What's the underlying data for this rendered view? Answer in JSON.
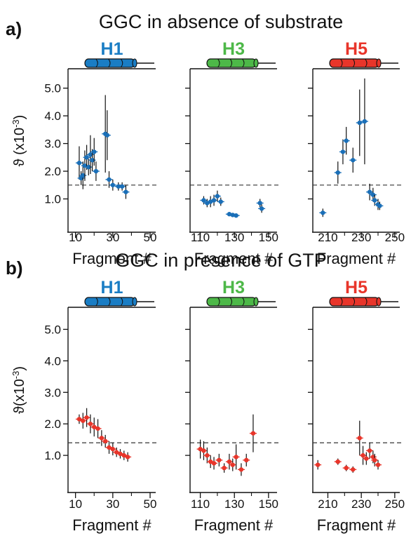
{
  "chart_data": [
    {
      "type": "scatter",
      "panel": "a)",
      "title": "GGC in absence of substrate",
      "ylabel_main": "ϑ (x10",
      "ylabel_exp": "-3",
      "ylabel_close": ")",
      "threshold": 1.5,
      "ylim": [
        0,
        5.7
      ],
      "yticks": [
        1.0,
        2.0,
        3.0,
        4.0,
        5.0
      ],
      "subplots": [
        {
          "helix": "H1",
          "helix_color": "#1a7dc4",
          "xlabel": "Fragment #",
          "xlim": [
            6,
            53
          ],
          "xticks": [
            10,
            30,
            50
          ],
          "xminor": [
            20,
            40
          ],
          "marker_color": "#1a6fb8",
          "points": [
            {
              "x": 12,
              "y": 2.3,
              "err": 0.6
            },
            {
              "x": 13,
              "y": 1.75,
              "err": 0.25
            },
            {
              "x": 14,
              "y": 1.85,
              "err": 0.5
            },
            {
              "x": 15,
              "y": 2.2,
              "err": 0.55
            },
            {
              "x": 16,
              "y": 2.5,
              "err": 0.45
            },
            {
              "x": 17,
              "y": 2.15,
              "err": 0.3
            },
            {
              "x": 18,
              "y": 2.6,
              "err": 0.7
            },
            {
              "x": 19,
              "y": 2.4,
              "err": 0.4
            },
            {
              "x": 20,
              "y": 2.7,
              "err": 0.5
            },
            {
              "x": 21,
              "y": 2.0,
              "err": 0.35
            },
            {
              "x": 26,
              "y": 3.35,
              "err": 1.4
            },
            {
              "x": 27,
              "y": 3.3,
              "err": 0.9
            },
            {
              "x": 28,
              "y": 1.7,
              "err": 0.3
            },
            {
              "x": 30,
              "y": 1.5,
              "err": 0.2
            },
            {
              "x": 33,
              "y": 1.45,
              "err": 0.15
            },
            {
              "x": 35,
              "y": 1.45,
              "err": 0.15
            },
            {
              "x": 37,
              "y": 1.25,
              "err": 0.25
            }
          ]
        },
        {
          "helix": "H3",
          "helix_color": "#4db848",
          "xlabel": "Fragment #",
          "xlim": [
            104,
            155
          ],
          "xticks": [
            110,
            130,
            150
          ],
          "xminor": [
            120,
            140
          ],
          "marker_color": "#1a6fb8",
          "points": [
            {
              "x": 112,
              "y": 0.95,
              "err": 0.15
            },
            {
              "x": 114,
              "y": 0.85,
              "err": 0.15
            },
            {
              "x": 116,
              "y": 0.9,
              "err": 0.2
            },
            {
              "x": 118,
              "y": 0.95,
              "err": 0.2
            },
            {
              "x": 120,
              "y": 1.1,
              "err": 0.2
            },
            {
              "x": 122,
              "y": 0.9,
              "err": 0.15
            },
            {
              "x": 127,
              "y": 0.45,
              "err": 0.05
            },
            {
              "x": 129,
              "y": 0.42,
              "err": 0.05
            },
            {
              "x": 131,
              "y": 0.4,
              "err": 0.05
            },
            {
              "x": 145,
              "y": 0.85,
              "err": 0.15
            },
            {
              "x": 146,
              "y": 0.65,
              "err": 0.15
            }
          ]
        },
        {
          "helix": "H5",
          "helix_color": "#e8352a",
          "xlabel": "Fragment #",
          "xlim": [
            201,
            253
          ],
          "xticks": [
            210,
            230,
            250
          ],
          "xminor": [
            220,
            240
          ],
          "marker_color": "#1a6fb8",
          "points": [
            {
              "x": 207,
              "y": 0.5,
              "err": 0.15
            },
            {
              "x": 216,
              "y": 1.95,
              "err": 0.4
            },
            {
              "x": 219,
              "y": 2.7,
              "err": 0.45
            },
            {
              "x": 221,
              "y": 3.1,
              "err": 0.5
            },
            {
              "x": 225,
              "y": 2.4,
              "err": 0.45
            },
            {
              "x": 229,
              "y": 3.75,
              "err": 1.2
            },
            {
              "x": 232,
              "y": 3.8,
              "err": 1.55
            },
            {
              "x": 235,
              "y": 1.25,
              "err": 0.3
            },
            {
              "x": 237,
              "y": 1.15,
              "err": 0.25
            },
            {
              "x": 238,
              "y": 0.95,
              "err": 0.2
            },
            {
              "x": 240,
              "y": 0.8,
              "err": 0.2
            },
            {
              "x": 241,
              "y": 0.75,
              "err": 0.15
            }
          ]
        }
      ]
    },
    {
      "type": "scatter",
      "panel": "b)",
      "title": "GGC in presence of GTP",
      "ylabel_main": "ϑ(x10",
      "ylabel_exp": "-3",
      "ylabel_close": ")",
      "threshold": 1.4,
      "ylim": [
        0,
        5.7
      ],
      "yticks": [
        1.0,
        2.0,
        3.0,
        4.0,
        5.0
      ],
      "subplots": [
        {
          "helix": "H1",
          "helix_color": "#1a7dc4",
          "xlabel": "Fragment #",
          "xlim": [
            6,
            53
          ],
          "xticks": [
            10,
            30,
            50
          ],
          "xminor": [
            20,
            40
          ],
          "marker_color": "#e8352a",
          "points": [
            {
              "x": 12,
              "y": 2.15,
              "err": 0.15
            },
            {
              "x": 14,
              "y": 2.1,
              "err": 0.25
            },
            {
              "x": 16,
              "y": 2.2,
              "err": 0.3
            },
            {
              "x": 18,
              "y": 2.0,
              "err": 0.3
            },
            {
              "x": 20,
              "y": 1.9,
              "err": 0.3
            },
            {
              "x": 22,
              "y": 1.85,
              "err": 0.3
            },
            {
              "x": 24,
              "y": 1.55,
              "err": 0.25
            },
            {
              "x": 26,
              "y": 1.45,
              "err": 0.2
            },
            {
              "x": 28,
              "y": 1.25,
              "err": 0.2
            },
            {
              "x": 30,
              "y": 1.2,
              "err": 0.2
            },
            {
              "x": 32,
              "y": 1.1,
              "err": 0.15
            },
            {
              "x": 34,
              "y": 1.05,
              "err": 0.15
            },
            {
              "x": 36,
              "y": 1.0,
              "err": 0.15
            },
            {
              "x": 38,
              "y": 0.95,
              "err": 0.15
            }
          ]
        },
        {
          "helix": "H3",
          "helix_color": "#4db848",
          "xlabel": "Fragment #",
          "xlim": [
            104,
            155
          ],
          "xticks": [
            110,
            130,
            150
          ],
          "xminor": [
            120,
            140
          ],
          "marker_color": "#e8352a",
          "points": [
            {
              "x": 110,
              "y": 1.2,
              "err": 0.3
            },
            {
              "x": 112,
              "y": 1.15,
              "err": 0.3
            },
            {
              "x": 114,
              "y": 1.0,
              "err": 0.25
            },
            {
              "x": 116,
              "y": 0.8,
              "err": 0.2
            },
            {
              "x": 118,
              "y": 0.75,
              "err": 0.2
            },
            {
              "x": 121,
              "y": 0.85,
              "err": 0.2
            },
            {
              "x": 124,
              "y": 0.6,
              "err": 0.15
            },
            {
              "x": 127,
              "y": 0.8,
              "err": 0.25
            },
            {
              "x": 129,
              "y": 0.7,
              "err": 0.2
            },
            {
              "x": 131,
              "y": 0.95,
              "err": 0.4
            },
            {
              "x": 134,
              "y": 0.55,
              "err": 0.2
            },
            {
              "x": 137,
              "y": 0.85,
              "err": 0.2
            },
            {
              "x": 141,
              "y": 1.7,
              "err": 0.6
            }
          ]
        },
        {
          "helix": "H5",
          "helix_color": "#e8352a",
          "xlabel": "Fragment #",
          "xlim": [
            201,
            253
          ],
          "xticks": [
            210,
            230,
            250
          ],
          "xminor": [
            220,
            240
          ],
          "marker_color": "#e8352a",
          "points": [
            {
              "x": 204,
              "y": 0.7,
              "err": 0.15
            },
            {
              "x": 216,
              "y": 0.8,
              "err": 0.1
            },
            {
              "x": 221,
              "y": 0.6,
              "err": 0.1
            },
            {
              "x": 225,
              "y": 0.55,
              "err": 0.1
            },
            {
              "x": 229,
              "y": 1.55,
              "err": 0.55
            },
            {
              "x": 231,
              "y": 1.0,
              "err": 0.3
            },
            {
              "x": 233,
              "y": 0.9,
              "err": 0.2
            },
            {
              "x": 235,
              "y": 1.15,
              "err": 0.25
            },
            {
              "x": 237,
              "y": 0.95,
              "err": 0.2
            },
            {
              "x": 238,
              "y": 0.85,
              "err": 0.2
            },
            {
              "x": 240,
              "y": 0.7,
              "err": 0.15
            }
          ]
        }
      ]
    }
  ]
}
